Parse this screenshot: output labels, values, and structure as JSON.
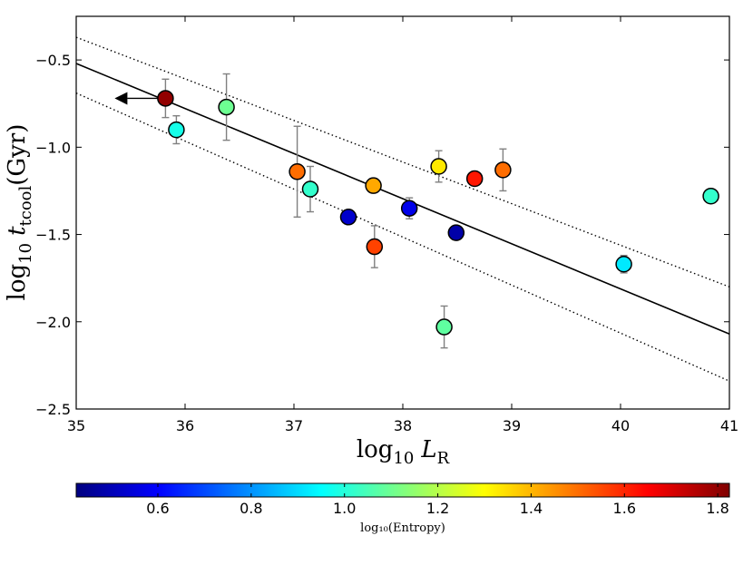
{
  "chart_data": {
    "type": "scatter",
    "x_label_base": "log",
    "x_label_sub": "10",
    "x_label_var": "L",
    "x_label_var_sub": "R",
    "y_label_base": "log",
    "y_label_sub": "10",
    "y_label_var": "t",
    "y_label_var_sub": "tcool",
    "y_label_unit": "(Gyr)",
    "xlim": [
      35,
      41
    ],
    "ylim": [
      -2.5,
      -0.25
    ],
    "x_ticks": [
      35,
      36,
      37,
      38,
      39,
      40,
      41
    ],
    "x_tick_labels": [
      "35",
      "36",
      "37",
      "38",
      "39",
      "40",
      "41"
    ],
    "y_ticks": [
      -0.5,
      -1.0,
      -1.5,
      -2.0,
      -2.5
    ],
    "y_tick_labels": [
      "−0.5",
      "−1.0",
      "−1.5",
      "−2.0",
      "−2.5"
    ],
    "points": [
      {
        "x": 35.82,
        "y": -0.72,
        "err": 0.11,
        "c": 1.8,
        "upper_limit_arrow": true
      },
      {
        "x": 35.92,
        "y": -0.9,
        "err": 0.08,
        "c": 0.98
      },
      {
        "x": 36.38,
        "y": -0.77,
        "err": 0.19,
        "c": 1.1
      },
      {
        "x": 37.03,
        "y": -1.14,
        "err": 0.26,
        "c": 1.5
      },
      {
        "x": 37.15,
        "y": -1.24,
        "err": 0.13,
        "c": 1.02
      },
      {
        "x": 37.5,
        "y": -1.4,
        "err": 0.0,
        "c": 0.53
      },
      {
        "x": 37.73,
        "y": -1.22,
        "err": 0.04,
        "c": 1.42
      },
      {
        "x": 37.74,
        "y": -1.57,
        "err": 0.12,
        "c": 1.56
      },
      {
        "x": 38.06,
        "y": -1.35,
        "err": 0.06,
        "c": 0.57
      },
      {
        "x": 38.33,
        "y": -1.11,
        "err": 0.09,
        "c": 1.33
      },
      {
        "x": 38.38,
        "y": -2.03,
        "err": 0.12,
        "c": 1.08
      },
      {
        "x": 38.49,
        "y": -1.49,
        "err": 0.0,
        "c": 0.48
      },
      {
        "x": 38.66,
        "y": -1.18,
        "err": 0.04,
        "c": 1.62
      },
      {
        "x": 38.92,
        "y": -1.13,
        "err": 0.12,
        "c": 1.5
      },
      {
        "x": 40.03,
        "y": -1.67,
        "err": 0.05,
        "c": 0.92
      },
      {
        "x": 40.83,
        "y": -1.28,
        "err": 0.0,
        "c": 1.02
      }
    ],
    "fit_line": {
      "x": [
        35,
        41
      ],
      "y": [
        -0.52,
        -2.07
      ]
    },
    "conf_upper": {
      "x": [
        35,
        41
      ],
      "y": [
        -0.37,
        -1.8
      ]
    },
    "conf_lower": {
      "x": [
        35,
        41
      ],
      "y": [
        -0.69,
        -2.34
      ]
    },
    "colorbar": {
      "label": "log₁₀(Entropy)",
      "vmin": 0.425,
      "vmax": 1.825,
      "ticks": [
        0.6,
        0.8,
        1.0,
        1.2,
        1.4,
        1.6,
        1.8
      ],
      "tick_labels": [
        "0.6",
        "0.8",
        "1.0",
        "1.2",
        "1.4",
        "1.6",
        "1.8"
      ]
    },
    "colors": {
      "fit": "#000000",
      "errorbar": "#808080",
      "marker_edge": "#000000"
    }
  }
}
